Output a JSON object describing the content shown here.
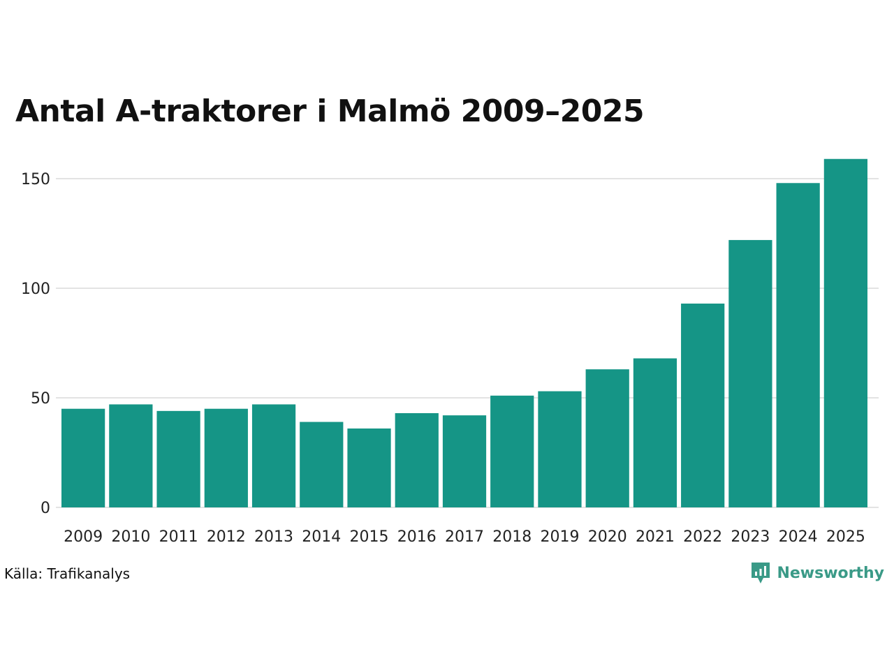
{
  "title": "Antal A-traktorer i Malmö 2009–2025",
  "source": "Källa: Trafikanalys",
  "brand": {
    "name": "Newsworthy",
    "color": "#3a9a87",
    "icon": "newsworthy-logo-icon"
  },
  "colors": {
    "bar": "#159586",
    "grid": "#e3e3e3",
    "text": "#111111"
  },
  "chart_data": {
    "type": "bar",
    "title": "Antal A-traktorer i Malmö 2009–2025",
    "xlabel": "",
    "ylabel": "",
    "categories": [
      "2009",
      "2010",
      "2011",
      "2012",
      "2013",
      "2014",
      "2015",
      "2016",
      "2017",
      "2018",
      "2019",
      "2020",
      "2021",
      "2022",
      "2023",
      "2024",
      "2025"
    ],
    "values": [
      45,
      47,
      44,
      45,
      47,
      39,
      36,
      43,
      42,
      51,
      53,
      63,
      68,
      93,
      122,
      148,
      159
    ],
    "ylim": [
      0,
      165
    ],
    "yticks": [
      0,
      50,
      100,
      150
    ],
    "grid": true,
    "legend": "none"
  }
}
